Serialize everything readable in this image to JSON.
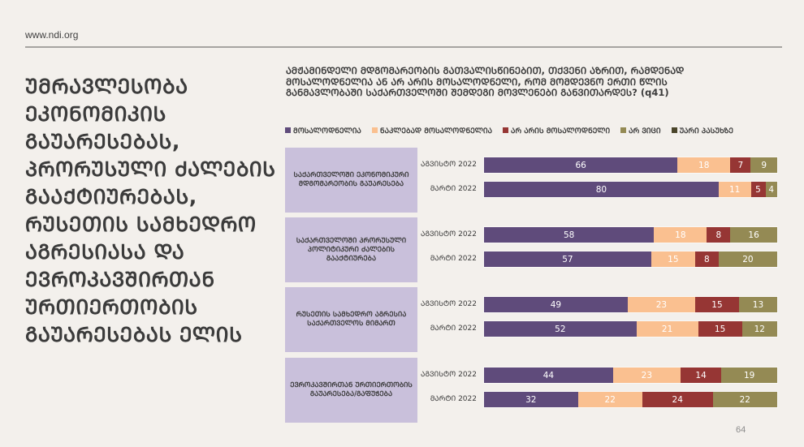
{
  "site_url": "www.ndi.org",
  "headline": "ᲣᲛᲠᲐᲕᲚᲔᲡᲝᲑᲐ ᲔᲙᲝᲜᲝᲛᲘᲙᲘᲡ ᲒᲐᲣᲐᲠᲔᲡᲔᲑᲐᲡ, ᲞᲠᲝᲠᲣᲡᲣᲚᲘ ᲫᲐᲚᲔᲑᲘᲡ ᲒᲐᲐᲥᲢᲘᲣᲠᲔᲑᲐᲡ, ᲠᲣᲡᲔᲗᲘᲡ ᲡᲐᲛᲮᲔᲓᲠᲝ ᲐᲒᲠᲔᲡᲘᲐᲡᲐ ᲓᲐ ᲔᲕᲠᲝᲙᲐᲕᲨᲘᲠᲗᲐᲜ ᲣᲠᲗᲘᲔᲠᲗᲝᲑᲘᲡ ᲒᲐᲣᲐᲠᲔᲡᲔᲑᲐᲡ ᲔᲚᲘᲡ",
  "page_number": "64",
  "chart_data": {
    "type": "bar",
    "orientation": "horizontal-stacked-100",
    "title": "ᲐᲛᲟᲐᲛᲘᲜᲓᲔᲚᲘ ᲛᲓᲒᲝᲛᲐᲠᲔᲝᲑᲘᲡ ᲒᲐᲗᲕᲐᲚᲘᲡᲬᲘᲜᲔᲑᲘᲗ, ᲗᲥᲕᲔᲜᲘ ᲐᲖᲠᲘᲗ, ᲠᲐᲛᲓᲔᲜᲐᲓ ᲛᲝᲡᲐᲚᲝᲓᲜᲔᲚᲘᲐ ᲐᲜ ᲐᲠ ᲐᲠᲘᲡ ᲛᲝᲡᲐᲚᲝᲓᲜᲔᲚᲘ, ᲠᲝᲛ ᲛᲝᲛᲓᲔᲕᲜᲝ ᲔᲠᲗᲘ ᲬᲚᲘᲡ ᲒᲐᲜᲛᲐᲕᲚᲝᲑᲐᲨᲘ ᲡᲐᲥᲐᲠᲗᲕᲔᲚᲝᲨᲘ ᲨᲔᲛᲓᲔᲒᲘ ᲛᲝᲕᲚᲔᲜᲔᲑᲘ ᲒᲐᲜᲕᲘᲗᲐᲠᲓᲔᲡ? (q41)",
    "xlabel": "",
    "ylabel": "",
    "xlim": [
      0,
      100
    ],
    "legend_position": "top",
    "legend": [
      {
        "name": "ᲛᲝᲡᲐᲚᲝᲓᲜᲔᲚᲘᲐ",
        "color": "#5f4b7b"
      },
      {
        "name": "ᲜᲐᲙᲚᲔᲑᲐᲓ ᲛᲝᲡᲐᲚᲝᲓᲜᲔᲚᲘᲐ",
        "color": "#fac090"
      },
      {
        "name": "ᲐᲠ ᲐᲠᲘᲡ ᲛᲝᲡᲐᲚᲝᲓᲜᲔᲚᲘ",
        "color": "#963634"
      },
      {
        "name": "ᲐᲠ ᲕᲘᲪᲘ",
        "color": "#948a54"
      },
      {
        "name": "ᲣᲐᲠᲘ ᲞᲐᲡᲣᲮᲖᲔ",
        "color": "#4a452a"
      }
    ],
    "groups": [
      {
        "category": "ᲡᲐᲥᲐᲠᲗᲕᲔᲚᲝᲨᲘ ᲔᲙᲝᲜᲝᲛᲘᲙᲣᲠᲘ ᲛᲓᲒᲝᲛᲐᲠᲔᲝᲑᲘᲡ ᲒᲐᲣᲐᲠᲔᲡᲔᲑᲐ",
        "rows": [
          {
            "label": "ᲐᲒᲕᲘᲡᲢᲝ 2022",
            "values": [
              66,
              18,
              7,
              9,
              0
            ]
          },
          {
            "label": "ᲛᲐᲠᲢᲘ 2022",
            "values": [
              80,
              11,
              5,
              4,
              0
            ]
          }
        ]
      },
      {
        "category": "ᲡᲐᲥᲐᲠᲗᲕᲔᲚᲝᲨᲘ ᲞᲠᲝᲠᲣᲡᲣᲚᲘ ᲞᲝᲚᲘᲢᲘᲙᲣᲠᲘ ᲫᲐᲚᲔᲑᲘᲡ ᲒᲐᲐᲥᲢᲘᲣᲠᲔᲑᲐ",
        "rows": [
          {
            "label": "ᲐᲒᲕᲘᲡᲢᲝ 2022",
            "values": [
              58,
              18,
              8,
              16,
              0
            ]
          },
          {
            "label": "ᲛᲐᲠᲢᲘ 2022",
            "values": [
              57,
              15,
              8,
              20,
              0
            ]
          }
        ]
      },
      {
        "category": "ᲠᲣᲡᲔᲗᲘᲡ ᲡᲐᲛᲮᲔᲓᲠᲝ ᲐᲒᲠᲔᲡᲘᲐ ᲡᲐᲥᲐᲠᲗᲕᲔᲚᲝᲡ ᲛᲘᲛᲐᲠᲗ",
        "rows": [
          {
            "label": "ᲐᲒᲕᲘᲡᲢᲝ 2022",
            "values": [
              49,
              23,
              15,
              13,
              0
            ]
          },
          {
            "label": "ᲛᲐᲠᲢᲘ 2022",
            "values": [
              52,
              21,
              15,
              12,
              0
            ]
          }
        ]
      },
      {
        "category": "ᲔᲕᲠᲝᲙᲐᲕᲨᲘᲠᲗᲐᲜ ᲣᲠᲗᲘᲔᲠᲗᲝᲑᲘᲡ ᲒᲐᲣᲐᲠᲔᲡᲔᲑᲐ/ᲒᲐᲤᲣᲭᲔᲑᲐ",
        "rows": [
          {
            "label": "ᲐᲒᲕᲘᲡᲢᲝ 2022",
            "values": [
              44,
              23,
              14,
              19,
              0
            ]
          },
          {
            "label": "ᲛᲐᲠᲢᲘ 2022",
            "values": [
              32,
              22,
              24,
              22,
              0
            ]
          }
        ]
      }
    ]
  }
}
